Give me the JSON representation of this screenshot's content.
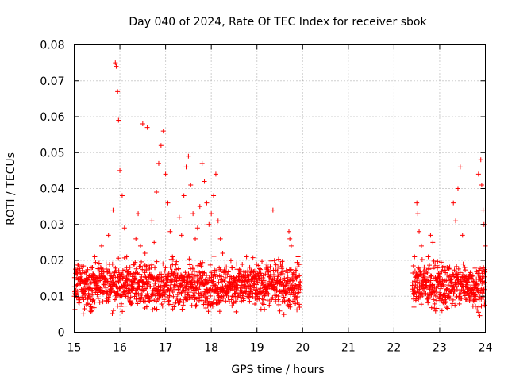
{
  "chart_data": {
    "type": "scatter",
    "title": "Day 040 of 2024, Rate Of TEC Index for receiver sbok",
    "xlabel": "GPS time / hours",
    "ylabel": "ROTI / TECUs",
    "xlim": [
      15,
      24
    ],
    "ylim": [
      0,
      0.08
    ],
    "x_ticks": [
      "15",
      "16",
      "17",
      "18",
      "19",
      "20",
      "21",
      "22",
      "23",
      "24"
    ],
    "y_ticks": [
      "0",
      "0.01",
      "0.02",
      "0.03",
      "0.04",
      "0.05",
      "0.06",
      "0.07",
      "0.08"
    ],
    "grid": true,
    "marker": "+",
    "marker_color": "#ff0000",
    "series": [
      {
        "points": [
          [
            15.0,
            0.01
          ],
          [
            15.05,
            0.013
          ],
          [
            15.1,
            0.009
          ],
          [
            15.15,
            0.016
          ],
          [
            15.2,
            0.011
          ],
          [
            15.25,
            0.014
          ],
          [
            15.3,
            0.008
          ],
          [
            15.35,
            0.012
          ],
          [
            15.4,
            0.018
          ],
          [
            15.45,
            0.021
          ],
          [
            15.5,
            0.013
          ],
          [
            15.55,
            0.017
          ],
          [
            15.6,
            0.024
          ],
          [
            15.65,
            0.011
          ],
          [
            15.7,
            0.019
          ],
          [
            15.75,
            0.027
          ],
          [
            15.8,
            0.015
          ],
          [
            15.85,
            0.034
          ],
          [
            15.9,
            0.075
          ],
          [
            15.92,
            0.074
          ],
          [
            15.95,
            0.067
          ],
          [
            15.97,
            0.059
          ],
          [
            16.0,
            0.045
          ],
          [
            16.05,
            0.038
          ],
          [
            16.1,
            0.029
          ],
          [
            16.15,
            0.021
          ],
          [
            16.2,
            0.016
          ],
          [
            16.25,
            0.012
          ],
          [
            16.3,
            0.019
          ],
          [
            16.35,
            0.026
          ],
          [
            16.4,
            0.033
          ],
          [
            16.45,
            0.024
          ],
          [
            16.5,
            0.058
          ],
          [
            16.55,
            0.022
          ],
          [
            16.6,
            0.057
          ],
          [
            16.65,
            0.018
          ],
          [
            16.7,
            0.031
          ],
          [
            16.75,
            0.025
          ],
          [
            16.8,
            0.039
          ],
          [
            16.85,
            0.047
          ],
          [
            16.9,
            0.052
          ],
          [
            16.95,
            0.056
          ],
          [
            17.0,
            0.044
          ],
          [
            17.05,
            0.036
          ],
          [
            17.1,
            0.028
          ],
          [
            17.15,
            0.021
          ],
          [
            17.2,
            0.017
          ],
          [
            17.25,
            0.013
          ],
          [
            17.3,
            0.032
          ],
          [
            17.35,
            0.027
          ],
          [
            17.4,
            0.038
          ],
          [
            17.45,
            0.046
          ],
          [
            17.5,
            0.049
          ],
          [
            17.55,
            0.041
          ],
          [
            17.6,
            0.033
          ],
          [
            17.65,
            0.026
          ],
          [
            17.7,
            0.029
          ],
          [
            17.75,
            0.035
          ],
          [
            17.8,
            0.047
          ],
          [
            17.85,
            0.042
          ],
          [
            17.9,
            0.036
          ],
          [
            17.95,
            0.03
          ],
          [
            18.0,
            0.033
          ],
          [
            18.05,
            0.038
          ],
          [
            18.1,
            0.044
          ],
          [
            18.15,
            0.031
          ],
          [
            18.2,
            0.026
          ],
          [
            18.25,
            0.022
          ],
          [
            18.3,
            0.019
          ],
          [
            18.35,
            0.016
          ],
          [
            18.4,
            0.014
          ],
          [
            18.45,
            0.018
          ],
          [
            18.5,
            0.015
          ],
          [
            18.55,
            0.012
          ],
          [
            18.6,
            0.017
          ],
          [
            18.65,
            0.013
          ],
          [
            18.7,
            0.011
          ],
          [
            18.75,
            0.016
          ],
          [
            18.8,
            0.014
          ],
          [
            18.85,
            0.01
          ],
          [
            18.9,
            0.013
          ],
          [
            18.95,
            0.017
          ],
          [
            19.0,
            0.012
          ],
          [
            19.05,
            0.015
          ],
          [
            19.1,
            0.011
          ],
          [
            19.15,
            0.014
          ],
          [
            19.2,
            0.018
          ],
          [
            19.25,
            0.013
          ],
          [
            19.3,
            0.016
          ],
          [
            19.35,
            0.034
          ],
          [
            19.4,
            0.012
          ],
          [
            19.45,
            0.017
          ],
          [
            19.5,
            0.014
          ],
          [
            19.55,
            0.019
          ],
          [
            19.6,
            0.015
          ],
          [
            19.65,
            0.011
          ],
          [
            19.7,
            0.028
          ],
          [
            19.72,
            0.026
          ],
          [
            19.75,
            0.024
          ],
          [
            19.8,
            0.016
          ],
          [
            19.85,
            0.013
          ],
          [
            19.9,
            0.021
          ],
          [
            19.95,
            0.012
          ],
          [
            22.4,
            0.012
          ],
          [
            22.45,
            0.021
          ],
          [
            22.5,
            0.036
          ],
          [
            22.52,
            0.033
          ],
          [
            22.55,
            0.028
          ],
          [
            22.6,
            0.024
          ],
          [
            22.65,
            0.017
          ],
          [
            22.7,
            0.013
          ],
          [
            22.75,
            0.021
          ],
          [
            22.8,
            0.027
          ],
          [
            22.85,
            0.025
          ],
          [
            22.9,
            0.019
          ],
          [
            22.95,
            0.015
          ],
          [
            23.0,
            0.011
          ],
          [
            23.05,
            0.006
          ],
          [
            23.1,
            0.009
          ],
          [
            23.15,
            0.012
          ],
          [
            23.2,
            0.01
          ],
          [
            23.25,
            0.014
          ],
          [
            23.3,
            0.036
          ],
          [
            23.35,
            0.031
          ],
          [
            23.4,
            0.04
          ],
          [
            23.45,
            0.046
          ],
          [
            23.5,
            0.027
          ],
          [
            23.55,
            0.018
          ],
          [
            23.6,
            0.012
          ],
          [
            23.65,
            0.016
          ],
          [
            23.7,
            0.011
          ],
          [
            23.75,
            0.014
          ],
          [
            23.8,
            0.009
          ],
          [
            23.85,
            0.044
          ],
          [
            23.9,
            0.048
          ],
          [
            23.92,
            0.041
          ],
          [
            23.95,
            0.034
          ],
          [
            23.97,
            0.03
          ],
          [
            24.0,
            0.024
          ]
        ]
      }
    ],
    "band": {
      "segments": [
        [
          15.0,
          19.95
        ],
        [
          22.4,
          24.0
        ]
      ],
      "y_min": 0.004,
      "y_max": 0.022
    }
  }
}
